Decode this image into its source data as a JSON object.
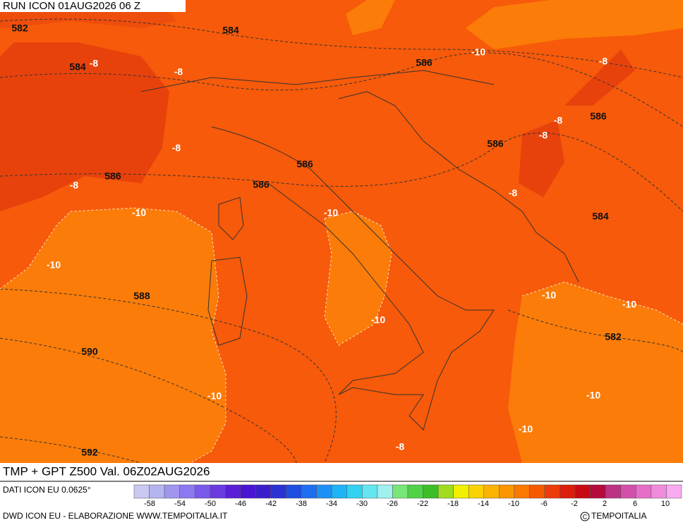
{
  "header": {
    "run": "RUN ICON 01AUG2026 06 Z"
  },
  "map": {
    "labels": [
      "582",
      "584",
      "584",
      "-8",
      "-8",
      "586",
      "-10",
      "-8",
      "-8",
      "586",
      "-8",
      "586",
      "-8",
      "586",
      "586",
      "-8",
      "586",
      "-8",
      "-10",
      "-10",
      "584",
      "-10",
      "588",
      "-10",
      "-10",
      "-10",
      "582",
      "590",
      "-10",
      "-10",
      "-10",
      "-8",
      "592"
    ]
  },
  "footer": {
    "title": "TMP + GPT Z500 Val. 06Z02AUG2026",
    "source": "DATI ICON EU 0.0625°",
    "credit": "DWD ICON EU - ELABORAZIONE WWW.TEMPOITALIA.IT",
    "brand": "TEMPOITALIA"
  },
  "colorbar": {
    "labels": [
      "-58",
      "-54",
      "-50",
      "-46",
      "-42",
      "-38",
      "-34",
      "-30",
      "-26",
      "-22",
      "-18",
      "-14",
      "-10",
      "-6",
      "-2",
      "2",
      "6",
      "10"
    ],
    "colors": [
      "#c8c8f0",
      "#b4b4f0",
      "#a096f0",
      "#8c78f0",
      "#7a5ae8",
      "#6a3ce0",
      "#5a1ed6",
      "#4a14d2",
      "#3a1ecc",
      "#2a32d2",
      "#1e4ee0",
      "#1e6ef0",
      "#1e90f5",
      "#1eb4f5",
      "#32d2f0",
      "#64e6f0",
      "#a0f0f0",
      "#78e678",
      "#50d246",
      "#3cbe28",
      "#a0dc1e",
      "#f0f000",
      "#fad200",
      "#fab400",
      "#fa9600",
      "#fa7800",
      "#f55a00",
      "#eb3c0a",
      "#dc1e0a",
      "#c80a14",
      "#b40a3c",
      "#be3282",
      "#d250aa",
      "#e66ec8",
      "#f08cdc",
      "#faaaf0"
    ]
  }
}
